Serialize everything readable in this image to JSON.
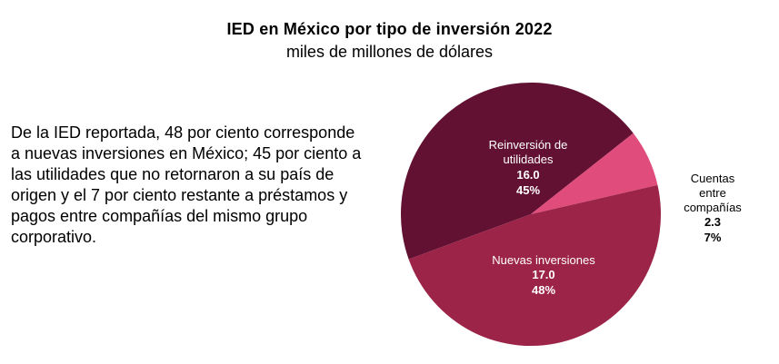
{
  "chart_data": {
    "type": "pie",
    "title": "IED en México por tipo de inversión 2022",
    "subtitle": "miles de millones de dólares",
    "unit": "miles de millones de dólares",
    "slices": [
      {
        "key": "reinversion",
        "label_lines": [
          "Reinversión de",
          "utilidades"
        ],
        "value": 16.0,
        "value_label": "16.0",
        "percent": 45,
        "percent_label": "45%",
        "color": "#621132"
      },
      {
        "key": "cuentas",
        "label_lines": [
          "Cuentas",
          "entre",
          "compañías"
        ],
        "value": 2.3,
        "value_label": "2.3",
        "percent": 7,
        "percent_label": "7%",
        "color": "#e04c7c"
      },
      {
        "key": "nuevas",
        "label_lines": [
          "Nuevas inversiones"
        ],
        "value": 17.0,
        "value_label": "17.0",
        "percent": 48,
        "percent_label": "48%",
        "color": "#9d2449"
      }
    ]
  },
  "description": "De la IED reportada, 48 por ciento corresponde a nuevas inversiones en México; 45 por ciento a las utilidades que no retornaron a su país de origen y el 7 por ciento restante a préstamos y pagos entre compañías del mismo grupo corporativo."
}
